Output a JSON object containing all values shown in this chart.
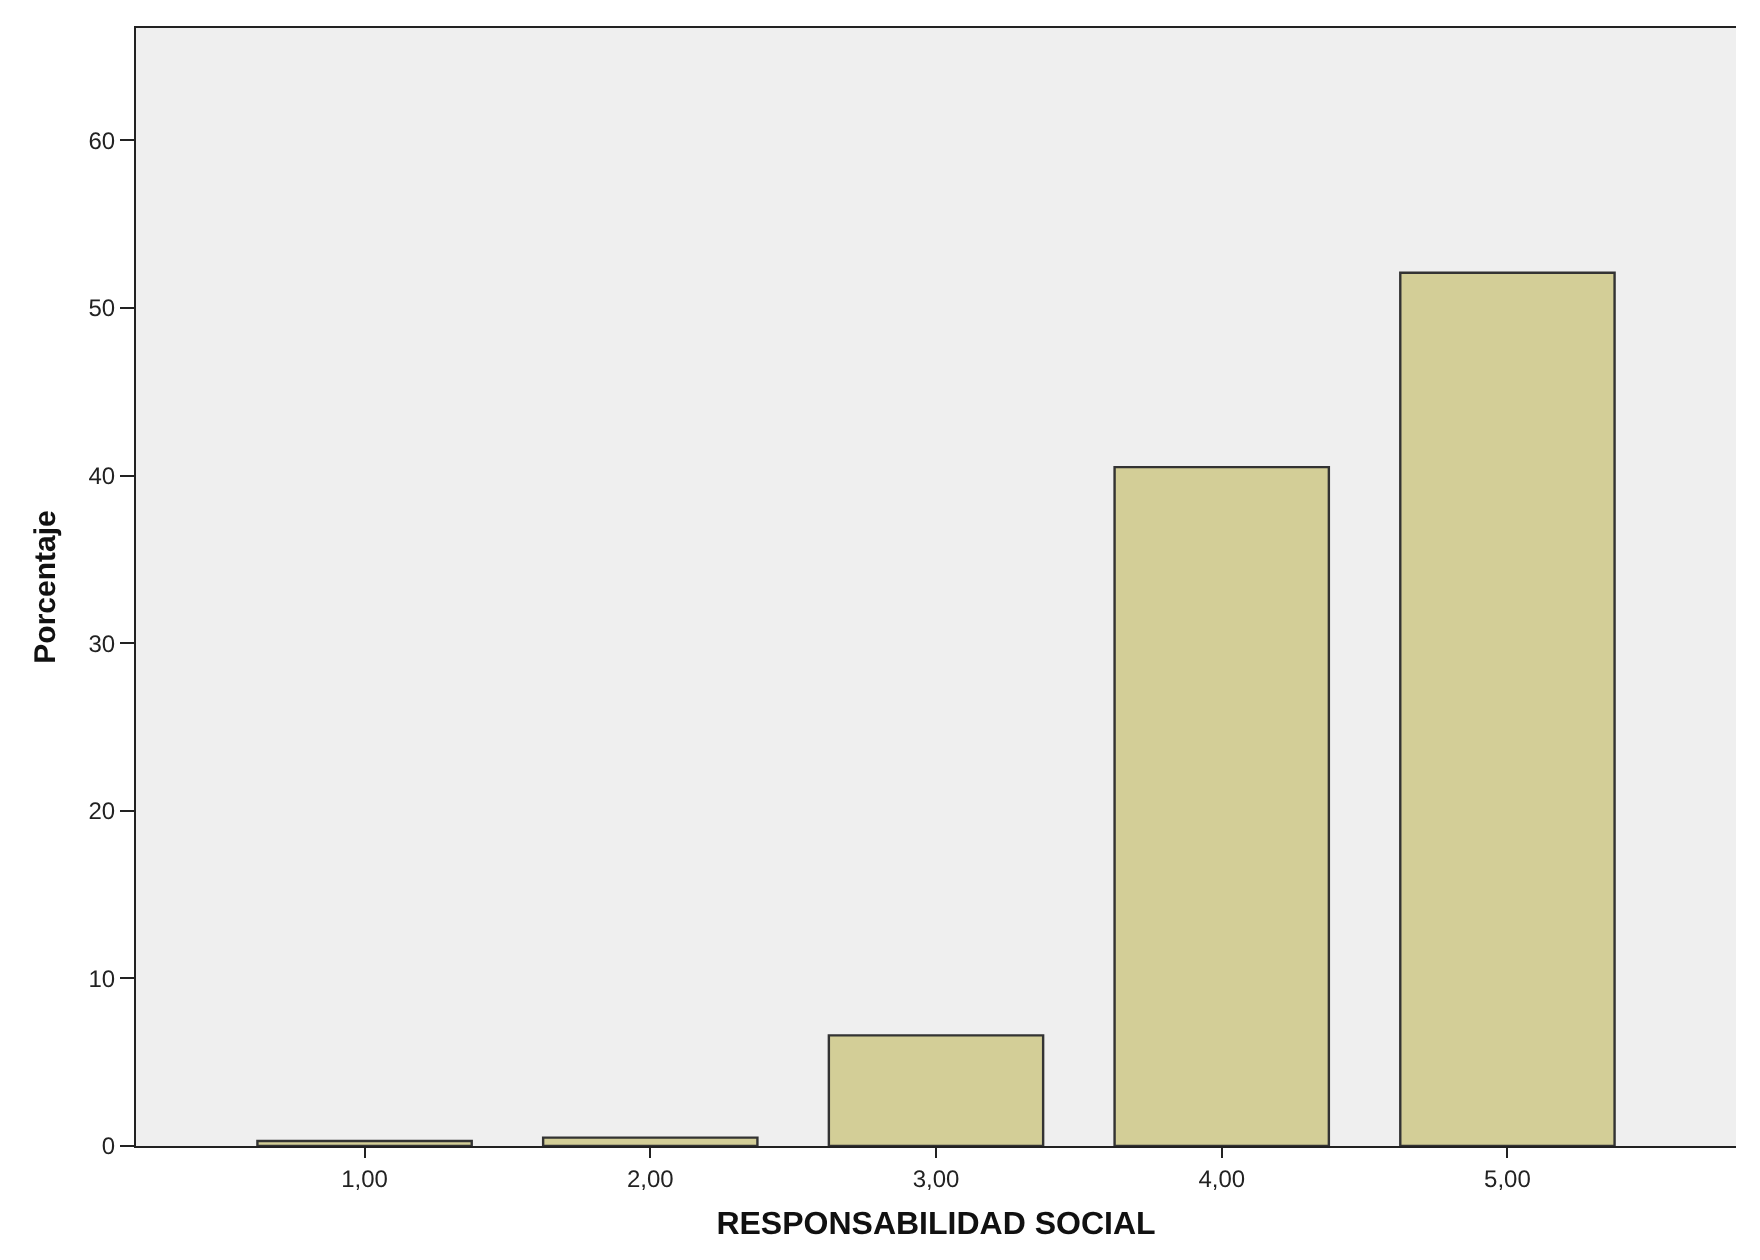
{
  "chart_data": {
    "type": "bar",
    "categories": [
      "1,00",
      "2,00",
      "3,00",
      "4,00",
      "5,00"
    ],
    "values": [
      0.3,
      0.5,
      6.6,
      40.5,
      52.1
    ],
    "color": "#d3ce97",
    "xlabel": "RESPONSABILIDAD SOCIAL",
    "ylabel": "Porcentaje",
    "ylim": [
      0,
      66.7
    ],
    "yticks": [
      0,
      10,
      20,
      30,
      40,
      50,
      60
    ],
    "grid": false
  }
}
